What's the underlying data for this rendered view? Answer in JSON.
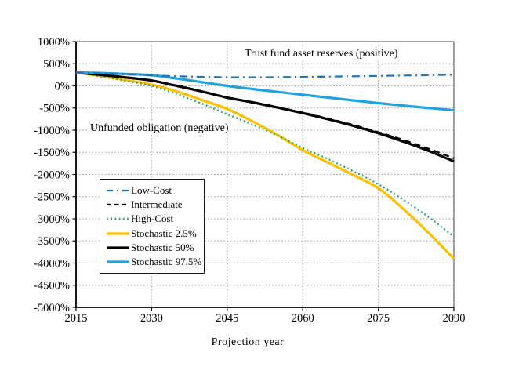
{
  "chart_data": {
    "type": "line",
    "title": "",
    "xlabel": "Projection year",
    "ylabel": "",
    "x_range": [
      2015,
      2090
    ],
    "y_range": [
      -5000,
      1000
    ],
    "x_ticks": [
      2015,
      2030,
      2045,
      2060,
      2075,
      2090
    ],
    "y_ticks": [
      1000,
      500,
      0,
      -500,
      -1000,
      -1500,
      -2000,
      -2500,
      -3000,
      -3500,
      -4000,
      -4500,
      -5000
    ],
    "y_tick_suffix": "%",
    "grid": "dotted",
    "grid_color": "#9a9a9a",
    "legend_position": "inside-left",
    "annotations": [
      {
        "text": "Trust fund asset reserves (positive)"
      },
      {
        "text": "Unfunded obligation (negative)"
      }
    ],
    "x": [
      2015,
      2020,
      2025,
      2030,
      2035,
      2040,
      2045,
      2050,
      2055,
      2060,
      2065,
      2070,
      2075,
      2080,
      2085,
      2090
    ],
    "series": [
      {
        "name": "Low-Cost",
        "color": "#2272B4",
        "style": "dashdot",
        "width": 2.2,
        "values": [
          300,
          280,
          258,
          238,
          218,
          203,
          195,
          193,
          196,
          202,
          209,
          216,
          224,
          233,
          242,
          252
        ]
      },
      {
        "name": "Intermediate",
        "color": "#000000",
        "style": "dashed",
        "width": 2.2,
        "values": [
          300,
          248,
          188,
          120,
          2,
          -126,
          -260,
          -366,
          -480,
          -602,
          -736,
          -882,
          -1042,
          -1222,
          -1420,
          -1635
        ]
      },
      {
        "name": "High-Cost",
        "color": "#27A567",
        "style": "dotted",
        "width": 2.4,
        "values": [
          300,
          212,
          112,
          0,
          -186,
          -402,
          -640,
          -872,
          -1122,
          -1400,
          -1652,
          -1925,
          -2220,
          -2572,
          -2962,
          -3405
        ]
      },
      {
        "name": "Stochastic 2.5%",
        "color": "#FFC000",
        "style": "solid",
        "width": 3.2,
        "values": [
          300,
          222,
          130,
          30,
          -128,
          -320,
          -520,
          -800,
          -1110,
          -1450,
          -1730,
          -2012,
          -2310,
          -2782,
          -3320,
          -3900
        ]
      },
      {
        "name": "Stochastic 50%",
        "color": "#000000",
        "style": "solid",
        "width": 3.2,
        "values": [
          300,
          248,
          188,
          120,
          0,
          -128,
          -265,
          -372,
          -490,
          -615,
          -752,
          -902,
          -1068,
          -1258,
          -1468,
          -1705
        ]
      },
      {
        "name": "Stochastic 97.5%",
        "color": "#1FA3DC",
        "style": "solid",
        "width": 3.2,
        "values": [
          300,
          290,
          268,
          240,
          166,
          84,
          0,
          -70,
          -136,
          -200,
          -264,
          -328,
          -390,
          -446,
          -500,
          -552
        ]
      }
    ],
    "draw_order": [
      3,
      2,
      4,
      1,
      5,
      0
    ]
  }
}
